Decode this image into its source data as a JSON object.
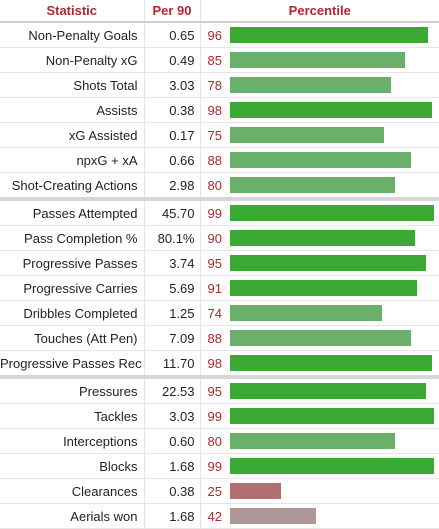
{
  "header": {
    "statistic": "Statistic",
    "per90": "Per 90",
    "percentile": "Percentile"
  },
  "colors": {
    "high": "#3aaa35",
    "mid": "#6aaf6a",
    "low": "#b07070",
    "lower": "#b09898"
  },
  "groups": [
    {
      "rows": [
        {
          "stat": "Non-Penalty Goals",
          "per90": "0.65",
          "pct": "96"
        },
        {
          "stat": "Non-Penalty xG",
          "per90": "0.49",
          "pct": "85"
        },
        {
          "stat": "Shots Total",
          "per90": "3.03",
          "pct": "78"
        },
        {
          "stat": "Assists",
          "per90": "0.38",
          "pct": "98"
        },
        {
          "stat": "xG Assisted",
          "per90": "0.17",
          "pct": "75"
        },
        {
          "stat": "npxG + xA",
          "per90": "0.66",
          "pct": "88"
        },
        {
          "stat": "Shot-Creating Actions",
          "per90": "2.98",
          "pct": "80"
        }
      ]
    },
    {
      "rows": [
        {
          "stat": "Passes Attempted",
          "per90": "45.70",
          "pct": "99"
        },
        {
          "stat": "Pass Completion %",
          "per90": "80.1%",
          "pct": "90"
        },
        {
          "stat": "Progressive Passes",
          "per90": "3.74",
          "pct": "95"
        },
        {
          "stat": "Progressive Carries",
          "per90": "5.69",
          "pct": "91"
        },
        {
          "stat": "Dribbles Completed",
          "per90": "1.25",
          "pct": "74"
        },
        {
          "stat": "Touches (Att Pen)",
          "per90": "7.09",
          "pct": "88"
        },
        {
          "stat": "Progressive Passes Rec",
          "per90": "11.70",
          "pct": "98"
        }
      ]
    },
    {
      "rows": [
        {
          "stat": "Pressures",
          "per90": "22.53",
          "pct": "95"
        },
        {
          "stat": "Tackles",
          "per90": "3.03",
          "pct": "99"
        },
        {
          "stat": "Interceptions",
          "per90": "0.60",
          "pct": "80"
        },
        {
          "stat": "Blocks",
          "per90": "1.68",
          "pct": "99"
        },
        {
          "stat": "Clearances",
          "per90": "0.38",
          "pct": "25"
        },
        {
          "stat": "Aerials won",
          "per90": "1.68",
          "pct": "42"
        }
      ]
    }
  ]
}
